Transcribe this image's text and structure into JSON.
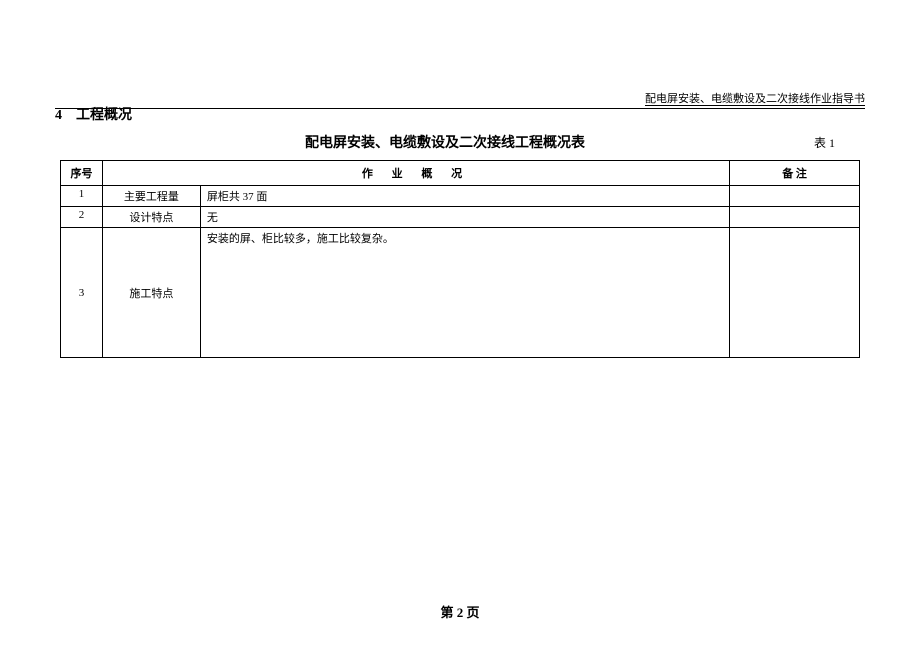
{
  "header": {
    "running_title": "配电屏安装、电缆敷设及二次接线作业指导书"
  },
  "section": {
    "number": "4",
    "title": "工程概况"
  },
  "table": {
    "title": "配电屏安装、电缆敷设及二次接线工程概况表",
    "label": "表 1",
    "columns": {
      "num": "序号",
      "desc": "作  业   概   况",
      "note": "备  注"
    },
    "rows": [
      {
        "num": "1",
        "label": "主要工程量",
        "desc": "屏柜共 37 面",
        "note": ""
      },
      {
        "num": "2",
        "label": "设计特点",
        "desc": "无",
        "note": ""
      },
      {
        "num": "3",
        "label": "施工特点",
        "desc": "安装的屏、柜比较多，施工比较复杂。",
        "note": ""
      }
    ]
  },
  "footer": {
    "page_number": "第 2 页"
  }
}
